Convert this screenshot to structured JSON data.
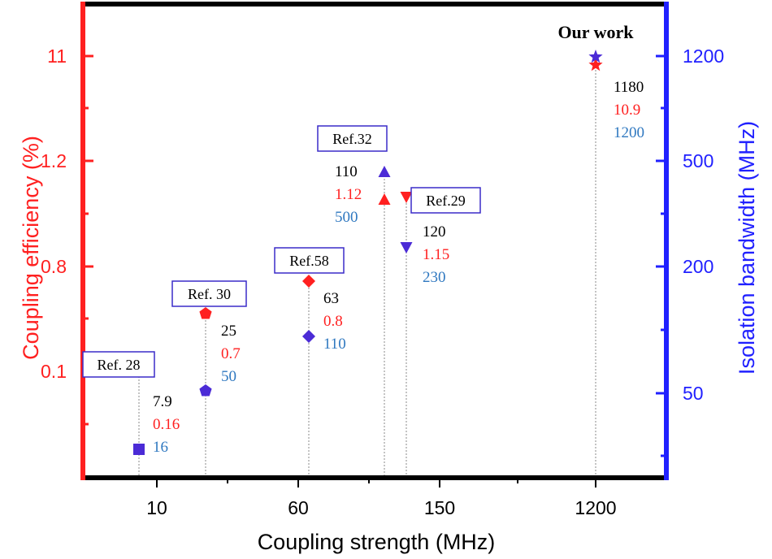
{
  "chart_data": {
    "type": "scatter",
    "title": "",
    "xlabel": "Coupling strength (MHz)",
    "ylabel_left": "Coupling efficiency (%)",
    "ylabel_right": "Isolation bandwidth (MHz)",
    "x_tick_labels": [
      "10",
      "60",
      "150",
      "1200"
    ],
    "y_left_tick_labels": [
      "0.1",
      "0.8",
      "1.2",
      "11"
    ],
    "y_right_tick_labels": [
      "50",
      "200",
      "500",
      "1200"
    ],
    "colors": {
      "left_axis": "#ff2020",
      "right_axis": "#2020ff",
      "coupling_strength_text": "#000000",
      "coupling_efficiency_text": "#ff2020",
      "isolation_bandwidth_text": "#2f78c0",
      "efficiency_marker": "#ff2020",
      "bandwidth_marker": "#4b2bd6",
      "label_box": "#3a2bc8"
    },
    "series": [
      {
        "name": "Coupling efficiency (%)",
        "axis": "left",
        "color": "#ff2020"
      },
      {
        "name": "Isolation bandwidth (MHz)",
        "axis": "right",
        "color": "#4b2bd6"
      }
    ],
    "points": [
      {
        "label": "Ref. 28",
        "marker": "square",
        "coupling_strength": "7.9",
        "coupling_efficiency": "0.16",
        "isolation_bandwidth": "16"
      },
      {
        "label": "Ref. 30",
        "marker": "pentagon",
        "coupling_strength": "25",
        "coupling_efficiency": "0.7",
        "isolation_bandwidth": "50"
      },
      {
        "label": "Ref.58",
        "marker": "diamond",
        "coupling_strength": "63",
        "coupling_efficiency": "0.8",
        "isolation_bandwidth": "110"
      },
      {
        "label": "Ref.32",
        "marker": "triangle-up",
        "coupling_strength": "110",
        "coupling_efficiency": "1.12",
        "isolation_bandwidth": "500"
      },
      {
        "label": "Ref.29",
        "marker": "triangle-down",
        "coupling_strength": "120",
        "coupling_efficiency": "1.15",
        "isolation_bandwidth": "230"
      },
      {
        "label": "Our work",
        "marker": "star",
        "coupling_strength": "1180",
        "coupling_efficiency": "10.9",
        "isolation_bandwidth": "1200"
      }
    ],
    "grid": false,
    "legend": "none"
  }
}
